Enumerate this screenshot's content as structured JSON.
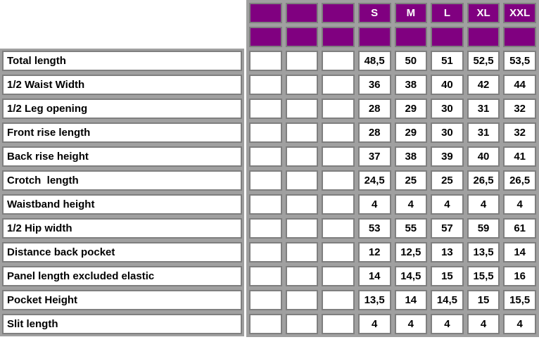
{
  "colors": {
    "header_bg": "#800080",
    "header_text": "#ffffff",
    "table_gray": "#a0a0a0",
    "cell_border": "#7f7f7f",
    "cell_bg": "#ffffff",
    "value_text": "#000000"
  },
  "empty_leading_columns": 3,
  "header": {
    "row1": [
      "",
      "",
      "",
      "S",
      "M",
      "L",
      "XL",
      "XXL"
    ],
    "row2": [
      "",
      "",
      "",
      "",
      "",
      "",
      "",
      ""
    ]
  },
  "measurements": [
    {
      "label": "Total length",
      "values": [
        "48,5",
        "50",
        "51",
        "52,5",
        "53,5"
      ]
    },
    {
      "label": "1/2 Waist Width",
      "values": [
        "36",
        "38",
        "40",
        "42",
        "44"
      ]
    },
    {
      "label": "1/2 Leg opening",
      "values": [
        "28",
        "29",
        "30",
        "31",
        "32"
      ]
    },
    {
      "label": "Front rise length",
      "values": [
        "28",
        "29",
        "30",
        "31",
        "32"
      ]
    },
    {
      "label": "Back rise height",
      "values": [
        "37",
        "38",
        "39",
        "40",
        "41"
      ]
    },
    {
      "label": "Crotch  length",
      "values": [
        "24,5",
        "25",
        "25",
        "26,5",
        "26,5"
      ]
    },
    {
      "label": "Waistband height",
      "values": [
        "4",
        "4",
        "4",
        "4",
        "4"
      ]
    },
    {
      "label": "1/2 Hip width",
      "values": [
        "53",
        "55",
        "57",
        "59",
        "61"
      ]
    },
    {
      "label": "Distance back pocket",
      "values": [
        "12",
        "12,5",
        "13",
        "13,5",
        "14"
      ]
    },
    {
      "label": "Panel length excluded elastic",
      "values": [
        "14",
        "14,5",
        "15",
        "15,5",
        "16"
      ]
    },
    {
      "label": "Pocket Height",
      "values": [
        "13,5",
        "14",
        "14,5",
        "15",
        "15,5"
      ]
    },
    {
      "label": "Slit length",
      "values": [
        "4",
        "4",
        "4",
        "4",
        "4"
      ]
    }
  ]
}
